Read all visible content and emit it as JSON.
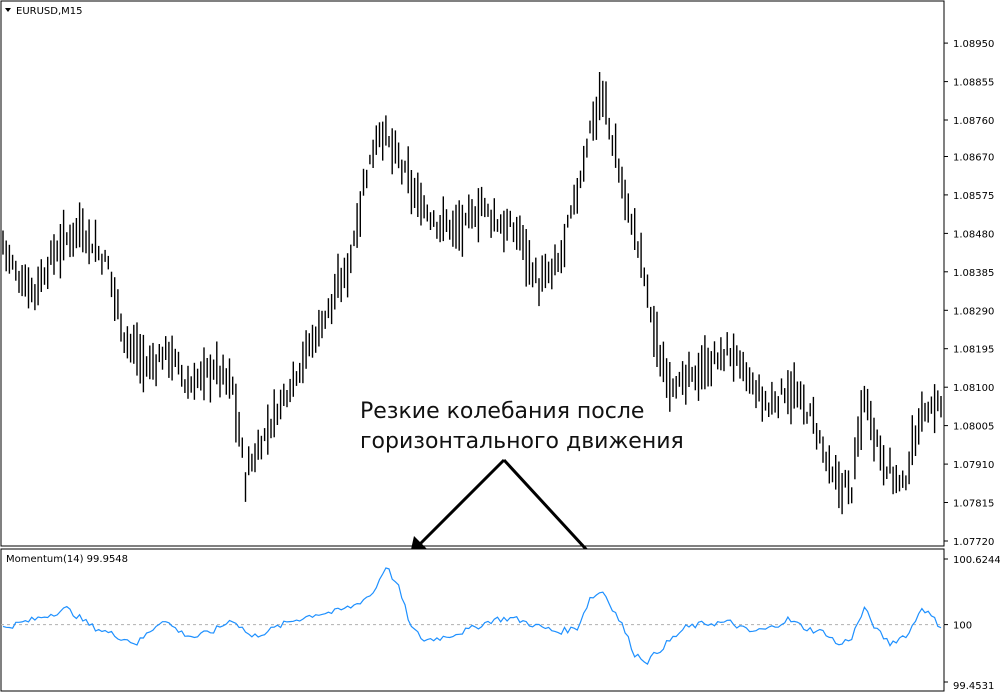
{
  "main_chart": {
    "symbol_label": "EURUSD,M15",
    "symbol_menu_icon": "triangle-down-icon",
    "bar_color": "#000000",
    "price_ticks": [
      "1.08950",
      "1.08855",
      "1.08760",
      "1.08670",
      "1.08575",
      "1.08480",
      "1.08385",
      "1.08290",
      "1.08195",
      "1.08100",
      "1.08005",
      "1.07910",
      "1.07815",
      "1.07720"
    ]
  },
  "annotation": {
    "line1": "Резкие колебания после",
    "line2": "горизонтального движения",
    "arrow_color": "#000000"
  },
  "indicator": {
    "label": "Momentum(14) 99.9548",
    "line_color": "#1e90ff",
    "reference_line_color": "#b0b0b0",
    "ticks": [
      "100.6244",
      "100",
      "99.4531"
    ]
  },
  "chart_data": [
    {
      "type": "ohlc",
      "title": "EURUSD,M15",
      "ylim": [
        1.0772,
        1.0898
      ],
      "y_ticks": [
        1.0895,
        1.08855,
        1.0876,
        1.0867,
        1.08575,
        1.0848,
        1.08385,
        1.0829,
        1.08195,
        1.081,
        1.08005,
        1.0791,
        1.07815,
        1.0772
      ],
      "keypoints": [
        [
          0,
          1.0846
        ],
        [
          4,
          1.0838
        ],
        [
          10,
          1.0834
        ],
        [
          16,
          1.0843
        ],
        [
          24,
          1.085
        ],
        [
          33,
          1.084
        ],
        [
          38,
          1.0823
        ],
        [
          45,
          1.0815
        ],
        [
          52,
          1.0819
        ],
        [
          58,
          1.081
        ],
        [
          66,
          1.0815
        ],
        [
          72,
          1.081
        ],
        [
          76,
          1.0788
        ],
        [
          82,
          1.0798
        ],
        [
          90,
          1.0811
        ],
        [
          100,
          1.0826
        ],
        [
          108,
          1.0839
        ],
        [
          114,
          1.0863
        ],
        [
          118,
          1.0874
        ],
        [
          124,
          1.0866
        ],
        [
          130,
          1.0856
        ],
        [
          136,
          1.0851
        ],
        [
          144,
          1.0849
        ],
        [
          150,
          1.0855
        ],
        [
          156,
          1.085
        ],
        [
          162,
          1.0848
        ],
        [
          168,
          1.0835
        ],
        [
          174,
          1.084
        ],
        [
          180,
          1.0858
        ],
        [
          184,
          1.0874
        ],
        [
          188,
          1.0882
        ],
        [
          194,
          1.086
        ],
        [
          200,
          1.0842
        ],
        [
          206,
          1.0816
        ],
        [
          212,
          1.081
        ],
        [
          220,
          1.0815
        ],
        [
          228,
          1.0819
        ],
        [
          234,
          1.0811
        ],
        [
          240,
          1.0805
        ],
        [
          246,
          1.081
        ],
        [
          254,
          1.0802
        ],
        [
          260,
          1.0787
        ],
        [
          266,
          1.0785
        ],
        [
          270,
          1.0808
        ],
        [
          276,
          1.0792
        ],
        [
          282,
          1.0785
        ],
        [
          288,
          1.0804
        ],
        [
          294,
          1.0806
        ]
      ]
    },
    {
      "type": "line",
      "title": "Momentum(14) 99.9548",
      "ylim": [
        99.4531,
        100.6244
      ],
      "reference": 100,
      "y_ticks": [
        100.6244,
        100,
        99.4531
      ],
      "keypoints": [
        [
          0,
          99.97
        ],
        [
          10,
          100.05
        ],
        [
          20,
          100.15
        ],
        [
          28,
          99.98
        ],
        [
          35,
          99.9
        ],
        [
          42,
          99.82
        ],
        [
          50,
          100.05
        ],
        [
          56,
          99.92
        ],
        [
          60,
          99.88
        ],
        [
          66,
          99.94
        ],
        [
          72,
          100.05
        ],
        [
          78,
          99.88
        ],
        [
          84,
          99.95
        ],
        [
          90,
          100.03
        ],
        [
          98,
          100.1
        ],
        [
          104,
          100.12
        ],
        [
          110,
          100.18
        ],
        [
          116,
          100.3
        ],
        [
          120,
          100.56
        ],
        [
          124,
          100.35
        ],
        [
          128,
          99.97
        ],
        [
          132,
          99.85
        ],
        [
          138,
          99.88
        ],
        [
          146,
          99.95
        ],
        [
          154,
          100.05
        ],
        [
          160,
          100.06
        ],
        [
          168,
          99.98
        ],
        [
          174,
          99.93
        ],
        [
          180,
          99.97
        ],
        [
          184,
          100.25
        ],
        [
          188,
          100.32
        ],
        [
          194,
          100.0
        ],
        [
          198,
          99.72
        ],
        [
          202,
          99.65
        ],
        [
          208,
          99.82
        ],
        [
          214,
          99.97
        ],
        [
          220,
          100.01
        ],
        [
          228,
          100.02
        ],
        [
          234,
          99.93
        ],
        [
          240,
          99.96
        ],
        [
          246,
          100.05
        ],
        [
          252,
          99.96
        ],
        [
          258,
          99.92
        ],
        [
          262,
          99.8
        ],
        [
          266,
          99.88
        ],
        [
          270,
          100.15
        ],
        [
          274,
          99.94
        ],
        [
          278,
          99.82
        ],
        [
          284,
          99.92
        ],
        [
          288,
          100.17
        ],
        [
          294,
          99.98
        ]
      ]
    }
  ]
}
